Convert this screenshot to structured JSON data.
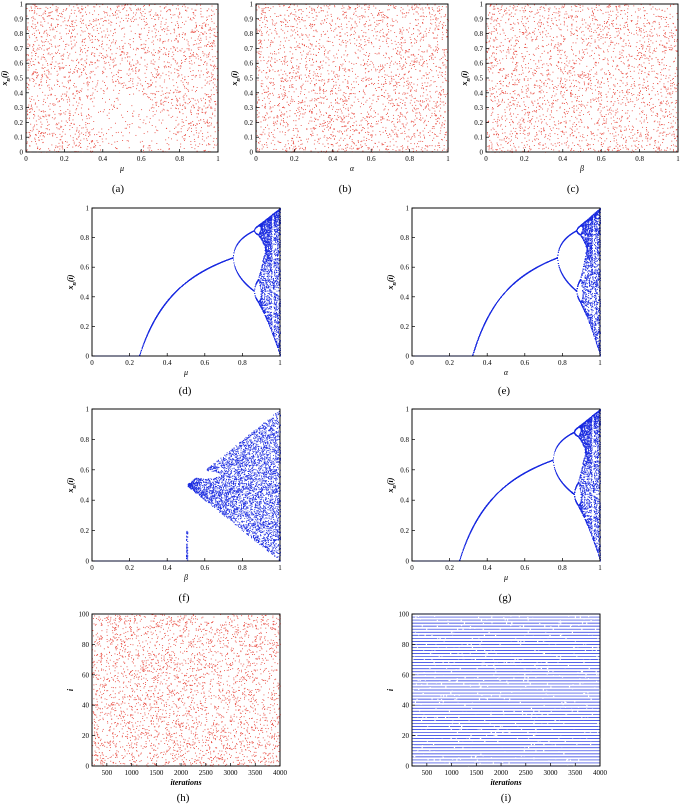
{
  "chart_data": [
    {
      "id": "a",
      "caption": "(a)",
      "type": "scatter",
      "style": "uniform",
      "color": "#e8473c",
      "xlabel": "μ",
      "ylabel": "x_n(i)",
      "xlim": [
        0,
        1
      ],
      "ylim": [
        0,
        1
      ],
      "xticks": [
        "0",
        "0.2",
        "0.4",
        "0.6",
        "0.8",
        "1"
      ],
      "yticks": [
        "0",
        "0.1",
        "0.2",
        "0.3",
        "0.4",
        "0.5",
        "0.6",
        "0.7",
        "0.8",
        "0.9",
        "1"
      ]
    },
    {
      "id": "b",
      "caption": "(b)",
      "type": "scatter",
      "style": "uniform",
      "color": "#e8473c",
      "xlabel": "α",
      "ylabel": "x_n(i)",
      "xlim": [
        0,
        1
      ],
      "ylim": [
        0,
        1
      ],
      "xticks": [
        "0",
        "0.2",
        "0.4",
        "0.6",
        "0.8",
        "1"
      ],
      "yticks": [
        "0",
        "0.1",
        "0.2",
        "0.3",
        "0.4",
        "0.5",
        "0.6",
        "0.7",
        "0.8",
        "0.9",
        "1"
      ]
    },
    {
      "id": "c",
      "caption": "(c)",
      "type": "scatter",
      "style": "uniform",
      "color": "#e8473c",
      "xlabel": "β",
      "ylabel": "x_n(i)",
      "xlim": [
        0,
        1
      ],
      "ylim": [
        0,
        1
      ],
      "xticks": [
        "0",
        "0.2",
        "0.4",
        "0.6",
        "0.8",
        "1"
      ],
      "yticks": [
        "0",
        "0.1",
        "0.2",
        "0.3",
        "0.4",
        "0.5",
        "0.6",
        "0.7",
        "0.8",
        "0.9",
        "1"
      ]
    },
    {
      "id": "d",
      "caption": "(d)",
      "type": "scatter",
      "style": "bifurcation",
      "color": "#1a2be0",
      "xlabel": "μ",
      "ylabel": "x_n(i)",
      "xlim": [
        0,
        1
      ],
      "ylim": [
        0,
        1
      ],
      "onset": 0.25,
      "chaos_start": 0.87,
      "xticks": [
        "0",
        "0.2",
        "0.4",
        "0.6",
        "0.8",
        "1"
      ],
      "yticks": [
        "0",
        "0.2",
        "0.4",
        "0.6",
        "0.8",
        "1"
      ]
    },
    {
      "id": "e",
      "caption": "(e)",
      "type": "scatter",
      "style": "bifurcation",
      "color": "#1a2be0",
      "xlabel": "α",
      "ylabel": "x_n(i)",
      "xlim": [
        0,
        1
      ],
      "ylim": [
        0,
        1
      ],
      "onset": 0.32,
      "chaos_start": 0.87,
      "xticks": [
        "0",
        "0.2",
        "0.4",
        "0.6",
        "0.8",
        "1"
      ],
      "yticks": [
        "0",
        "0.2",
        "0.4",
        "0.6",
        "0.8",
        "1"
      ]
    },
    {
      "id": "f",
      "caption": "(f)",
      "type": "scatter",
      "style": "fan",
      "color": "#1a2be0",
      "xlabel": "β",
      "ylabel": "x_n(i)",
      "xlim": [
        0,
        1
      ],
      "ylim": [
        0,
        1
      ],
      "onset": 0.5,
      "xticks": [
        "0",
        "0.2",
        "0.4",
        "0.6",
        "0.8",
        "1"
      ],
      "yticks": [
        "0",
        "0.2",
        "0.4",
        "0.6",
        "0.8",
        "1"
      ]
    },
    {
      "id": "g",
      "caption": "(g)",
      "type": "scatter",
      "style": "bifurcation",
      "color": "#1a2be0",
      "xlabel": "μ",
      "ylabel": "x_n(i)",
      "xlim": [
        0,
        1
      ],
      "ylim": [
        0,
        1
      ],
      "onset": 0.25,
      "chaos_start": 0.84,
      "xticks": [
        "0",
        "0.2",
        "0.4",
        "0.6",
        "0.8",
        "1"
      ],
      "yticks": [
        "0",
        "0.2",
        "0.4",
        "0.6",
        "0.8",
        "1"
      ]
    },
    {
      "id": "h",
      "caption": "(h)",
      "type": "scatter",
      "style": "uniform",
      "color": "#e8473c",
      "xlabel": "iterations",
      "ylabel": "i",
      "xlim": [
        200,
        4000
      ],
      "ylim": [
        0,
        100
      ],
      "xtick_values": [
        500,
        1000,
        1500,
        2000,
        2500,
        3000,
        3500,
        4000
      ],
      "xticks": [
        "500",
        "1000",
        "1500",
        "2000",
        "2500",
        "3000",
        "3500",
        "4000"
      ],
      "ytick_values": [
        0,
        20,
        40,
        60,
        80,
        100
      ],
      "yticks": [
        "0",
        "20",
        "40",
        "60",
        "80",
        "100"
      ]
    },
    {
      "id": "i",
      "caption": "(i)",
      "type": "scatter",
      "style": "lines",
      "color": "#1a2be0",
      "xlabel": "iterations",
      "ylabel": "i",
      "xlim": [
        200,
        4000
      ],
      "ylim": [
        0,
        100
      ],
      "xtick_values": [
        500,
        1000,
        1500,
        2000,
        2500,
        3000,
        3500,
        4000
      ],
      "xticks": [
        "500",
        "1000",
        "1500",
        "2000",
        "2500",
        "3000",
        "3500",
        "4000"
      ],
      "ytick_values": [
        0,
        20,
        40,
        60,
        80,
        100
      ],
      "yticks": [
        "0",
        "20",
        "40",
        "60",
        "80",
        "100"
      ]
    }
  ]
}
